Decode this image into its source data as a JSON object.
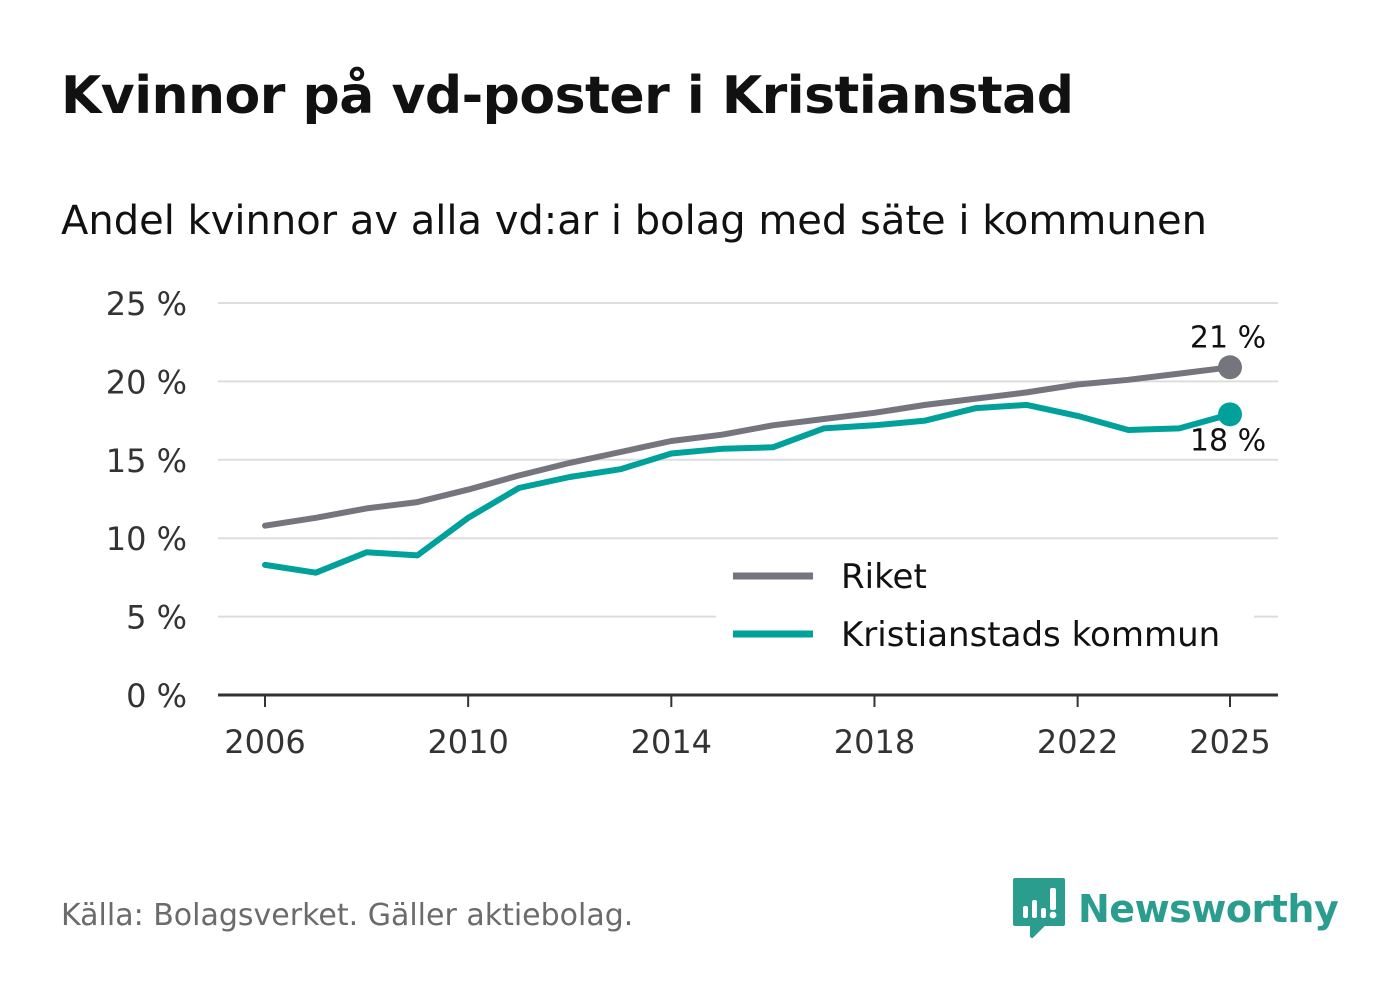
{
  "header": {
    "title": "Kvinnor på vd-poster i Kristianstad",
    "subtitle": "Andel kvinnor av alla vd:ar i bolag med säte i kommunen"
  },
  "footer": {
    "source": "Källa: Bolagsverket. Gäller aktiebolag.",
    "brand": "Newsworthy",
    "brand_color": "#2a9d8f"
  },
  "chart_data": {
    "type": "line",
    "title": "Kvinnor på vd-poster i Kristianstad",
    "subtitle": "Andel kvinnor av alla vd:ar i bolag med säte i kommunen",
    "xlabel": "",
    "ylabel": "",
    "x": [
      2006,
      2007,
      2008,
      2009,
      2010,
      2011,
      2012,
      2013,
      2014,
      2015,
      2016,
      2017,
      2018,
      2019,
      2020,
      2021,
      2022,
      2023,
      2024,
      2025
    ],
    "x_ticks": [
      2006,
      2010,
      2014,
      2018,
      2022,
      2025
    ],
    "y_ticks": [
      0,
      5,
      10,
      15,
      20,
      25
    ],
    "y_tick_suffix": " %",
    "ylim": [
      0,
      25
    ],
    "xlim": [
      2006,
      2025
    ],
    "grid": true,
    "legend_position": "bottom-right",
    "series": [
      {
        "name": "Riket",
        "color": "#75757d",
        "values": [
          10.8,
          11.3,
          11.9,
          12.3,
          13.1,
          14.0,
          14.8,
          15.5,
          16.2,
          16.6,
          17.2,
          17.6,
          18.0,
          18.5,
          18.9,
          19.3,
          19.8,
          20.1,
          20.5,
          20.9
        ],
        "end_label": "21 %"
      },
      {
        "name": "Kristianstads kommun",
        "color": "#00a19a",
        "values": [
          8.3,
          7.8,
          9.1,
          8.9,
          11.3,
          13.2,
          13.9,
          14.4,
          15.4,
          15.7,
          15.8,
          17.0,
          17.2,
          17.5,
          18.3,
          18.5,
          17.8,
          16.9,
          17.0,
          17.9
        ],
        "end_label": "18 %"
      }
    ]
  }
}
